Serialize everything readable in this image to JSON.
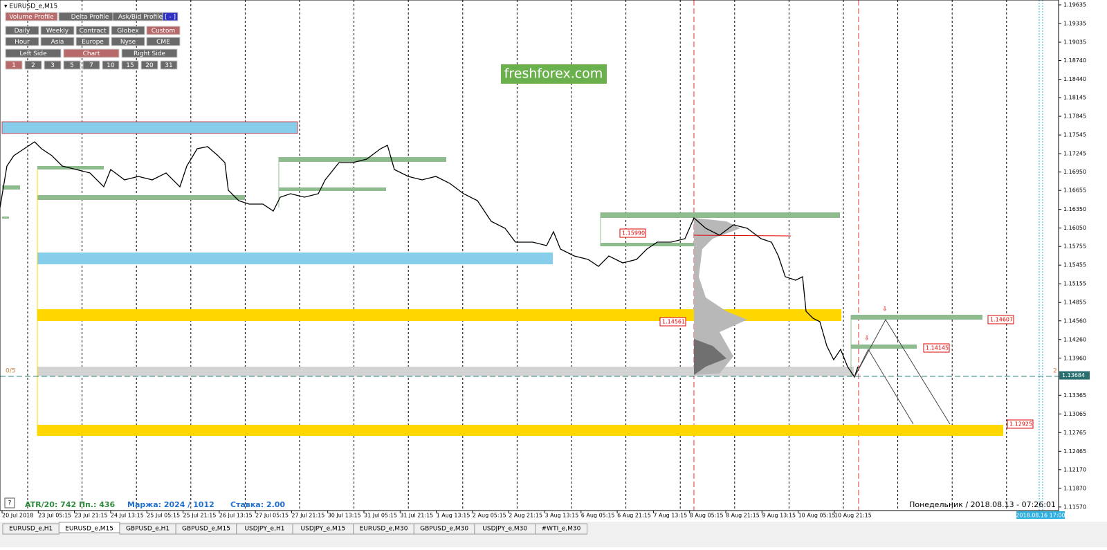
{
  "window_title": "EURUSD_e,M15",
  "panel": {
    "row1": [
      "Volume Profile",
      "Delta Profile",
      "Ask/Bid Profile",
      "[ - ]"
    ],
    "row2": [
      "Daily",
      "Weekly",
      "Contract",
      "Globex",
      "Custom"
    ],
    "row3": [
      "Hour",
      "Asia",
      "Europe",
      "Nyse",
      "CME"
    ],
    "row4": [
      "Left Side",
      "Chart",
      "Right Side"
    ],
    "row5": [
      "1",
      "2",
      "3",
      "5",
      "7",
      "10",
      "15",
      "20",
      "31"
    ]
  },
  "watermark": "freshforex.com",
  "price_axis": [
    "1.19635",
    "1.19335",
    "1.19035",
    "1.18740",
    "1.18440",
    "1.18145",
    "1.17845",
    "1.17545",
    "1.17245",
    "1.16950",
    "1.16655",
    "1.16350",
    "1.16050",
    "1.15755",
    "1.15455",
    "1.15155",
    "1.14855",
    "1.14560",
    "1.14260",
    "1.13960",
    "1.13365",
    "1.13065",
    "1.12765",
    "1.12465",
    "1.12170",
    "1.11870",
    "1.11570"
  ],
  "current_price": "1.13684",
  "time_axis": [
    "20 Jul 2018",
    "23 Jul 05:15",
    "23 Jul 21:15",
    "24 Jul 13:15",
    "25 Jul 05:15",
    "25 Jul 21:15",
    "26 Jul 13:15",
    "27 Jul 05:15",
    "27 Jul 21:15",
    "30 Jul 13:15",
    "31 Jul 05:15",
    "31 Jul 21:15",
    "1 Aug 13:15",
    "2 Aug 05:15",
    "2 Aug 21:15",
    "3 Aug 13:15",
    "6 Aug 05:15",
    "6 Aug 21:15",
    "7 Aug 13:15",
    "8 Aug 05:15",
    "8 Aug 21:15",
    "9 Aug 13:15",
    "10 Aug 05:15",
    "10 Aug 21:15"
  ],
  "time_marker": "2018.08.16 17:00",
  "level_labels": [
    "1.15990",
    "1.14561",
    "1.14607",
    "1.14145",
    "1.12925"
  ],
  "left_marker": "0/5",
  "right_marker": "2",
  "help": "?",
  "status": {
    "atr": "ATR/20: 742  Пп.: 436",
    "margin": "Маржа: 2024 / 1012",
    "rate": "Ставка: 2.00",
    "datetime": "Понедельник  /  2018.08.13 - 07:26:01"
  },
  "tabs": [
    "EURUSD_e,H1",
    "EURUSD_e,M15",
    "GBPUSD_e,H1",
    "GBPUSD_e,M15",
    "USDJPY_e,H1",
    "USDJPY_e,M15",
    "EURUSD_e,M30",
    "GBPUSD_e,M30",
    "USDJPY_e,M30",
    "#WTI_e,M30"
  ]
}
